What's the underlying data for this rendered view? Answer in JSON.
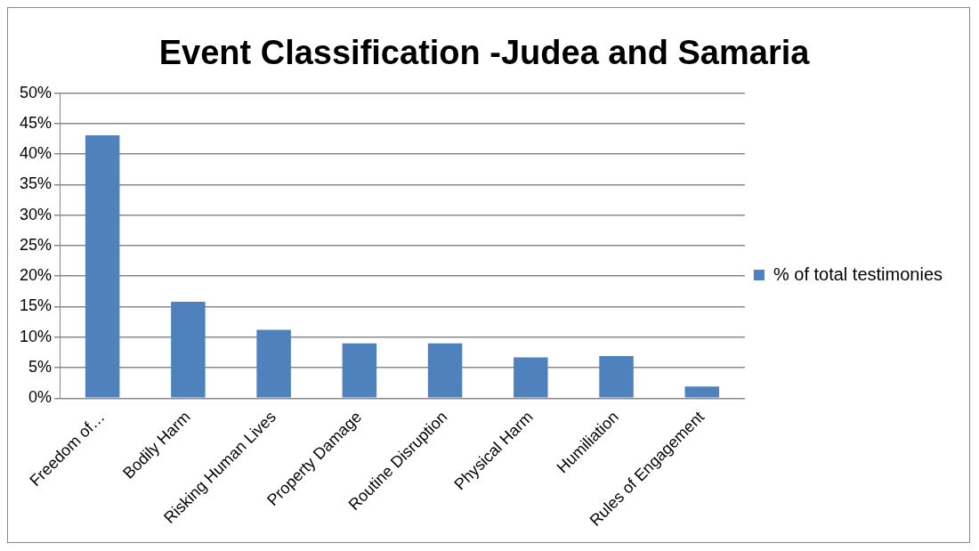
{
  "chart_data": {
    "type": "bar",
    "title": "Event Classification -Judea and Samaria",
    "categories": [
      "Freedom of…",
      "Bodily Harm",
      "Risking Human Lives",
      "Property Damage",
      "Routine Disruption",
      "Physical Harm",
      "Humiliation",
      "Rules of Engagement"
    ],
    "series": [
      {
        "name": "% of total testimonies",
        "color": "#4f81bd",
        "values": [
          43.1,
          15.8,
          11.2,
          9.0,
          9.0,
          6.7,
          6.9,
          1.9
        ]
      }
    ],
    "ylim": [
      0,
      50
    ],
    "yticks": [
      {
        "value": 0,
        "label": "0%"
      },
      {
        "value": 5,
        "label": "5%"
      },
      {
        "value": 10,
        "label": "10%"
      },
      {
        "value": 15,
        "label": "15%"
      },
      {
        "value": 20,
        "label": "20%"
      },
      {
        "value": 25,
        "label": "25%"
      },
      {
        "value": 30,
        "label": "30%"
      },
      {
        "value": 35,
        "label": "35%"
      },
      {
        "value": 40,
        "label": "40%"
      },
      {
        "value": 45,
        "label": "45%"
      },
      {
        "value": 50,
        "label": "50%"
      }
    ],
    "grid": "y",
    "legend": "right"
  }
}
